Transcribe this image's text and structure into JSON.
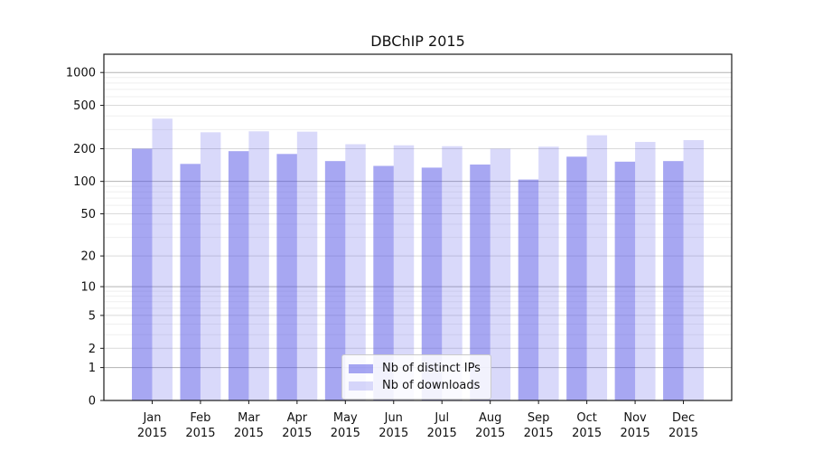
{
  "chart_data": {
    "type": "bar",
    "title": "DBChIP 2015",
    "categories": [
      "Jan",
      "Feb",
      "Mar",
      "Apr",
      "May",
      "Jun",
      "Jul",
      "Aug",
      "Sep",
      "Oct",
      "Nov",
      "Dec"
    ],
    "x_tick_second_line": "2015",
    "series": [
      {
        "name": "Nb of distinct IPs",
        "fill": "rgba(80,80,230,0.50)",
        "values": [
          200,
          145,
          190,
          179,
          154,
          139,
          134,
          143,
          104,
          169,
          152,
          154
        ]
      },
      {
        "name": "Nb of downloads",
        "fill": "rgba(80,80,230,0.22)",
        "values": [
          378,
          283,
          289,
          287,
          220,
          215,
          211,
          200,
          209,
          266,
          231,
          240
        ]
      }
    ],
    "y_scale": "log1p",
    "y_ticks": [
      0,
      1,
      2,
      5,
      10,
      20,
      50,
      100,
      200,
      500,
      1000
    ],
    "y_minor_ticks": [
      3,
      4,
      6,
      7,
      8,
      9,
      30,
      40,
      60,
      70,
      80,
      90,
      300,
      400,
      600,
      700,
      800,
      900
    ],
    "ylim": [
      0,
      1470
    ],
    "grid": true,
    "legend_position": "lower center",
    "colors": {
      "spine": "#1a1a1a",
      "grid_decade": "#b3b3b3",
      "grid_labeled": "#dadada",
      "grid_minor": "#efefef",
      "text": "#111111"
    }
  }
}
